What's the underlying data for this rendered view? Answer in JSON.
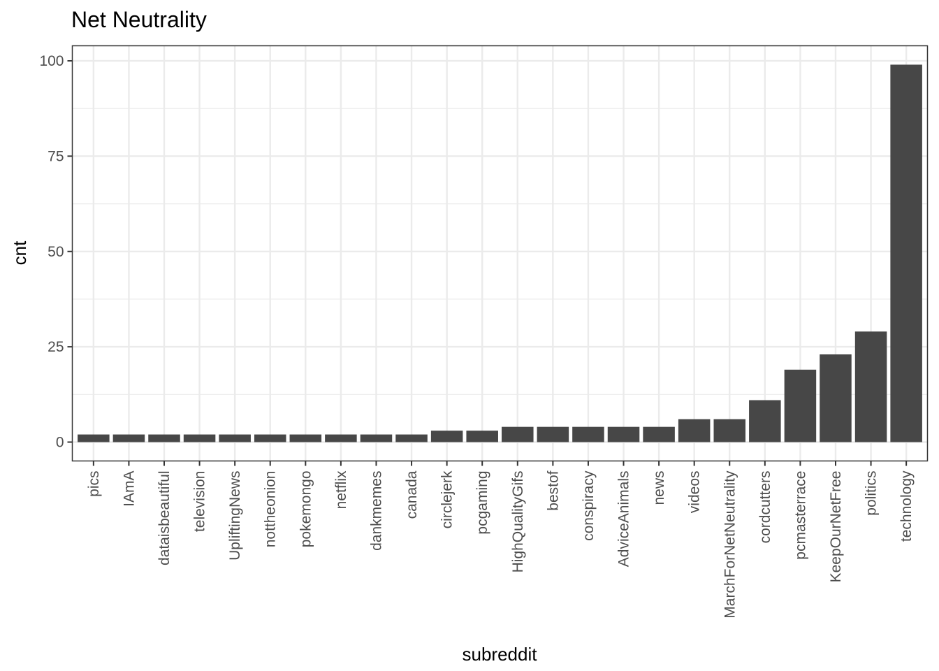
{
  "chart_data": {
    "type": "bar",
    "title": "Net Neutrality",
    "xlabel": "subreddit",
    "ylabel": "cnt",
    "categories": [
      "pics",
      "IAmA",
      "dataisbeautiful",
      "television",
      "UpliftingNews",
      "nottheonion",
      "pokemongo",
      "netflix",
      "dankmemes",
      "canada",
      "circlejerk",
      "pcgaming",
      "HighQualityGifs",
      "bestof",
      "conspiracy",
      "AdviceAnimals",
      "news",
      "videos",
      "MarchForNetNeutrality",
      "cordcutters",
      "pcmasterrace",
      "KeepOurNetFree",
      "politics",
      "technology"
    ],
    "values": [
      2,
      2,
      2,
      2,
      2,
      2,
      2,
      2,
      2,
      2,
      3,
      3,
      4,
      4,
      4,
      4,
      4,
      6,
      6,
      11,
      19,
      23,
      29,
      99
    ],
    "ylim": [
      -4.95,
      103.95
    ],
    "yticks": [
      0,
      25,
      50,
      75,
      100
    ],
    "ytick_labels": [
      "0",
      "25",
      "50",
      "75",
      "100"
    ],
    "grid": true,
    "bar_color": "#474747"
  }
}
